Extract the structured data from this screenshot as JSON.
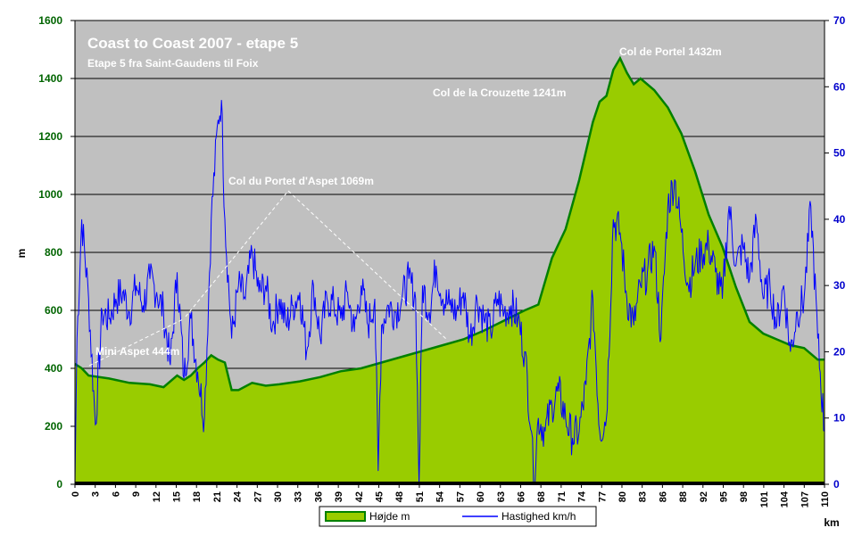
{
  "chart_data": {
    "type": "area+line",
    "title": "Coast to Coast 2007 - etape 5",
    "subtitle": "Etape 5 fra Saint-Gaudens til Foix",
    "ylabel": "m",
    "xlabel": "km",
    "ylim": [
      0,
      1600
    ],
    "y2lim": [
      0,
      70
    ],
    "xlim": [
      0,
      110
    ],
    "yticks": [
      "0",
      "200",
      "400",
      "600",
      "800",
      "1000",
      "1200",
      "1400",
      "1600"
    ],
    "y2ticks": [
      "0",
      "10",
      "20",
      "30",
      "40",
      "50",
      "60",
      "70"
    ],
    "xticks": [
      "0",
      "3",
      "6",
      "9",
      "12",
      "15",
      "18",
      "21",
      "24",
      "27",
      "30",
      "33",
      "36",
      "39",
      "42",
      "45",
      "48",
      "51",
      "54",
      "57",
      "60",
      "63",
      "66",
      "68",
      "71",
      "74",
      "77",
      "80",
      "83",
      "86",
      "88",
      "92",
      "95",
      "98",
      "101",
      "104",
      "107",
      "110"
    ],
    "grid": true,
    "legend_position": "bottom",
    "colors": {
      "plot_bg": "#c0c0c0",
      "area_fill": "#99cc00",
      "area_line": "#008000",
      "speed_line": "#0000ff",
      "left_axis": "#006400",
      "right_axis": "#0000cc"
    },
    "series": [
      {
        "name": "Højde m",
        "axis": "left",
        "x": [
          0,
          1,
          2,
          5,
          8,
          11,
          13,
          15,
          16,
          17,
          18,
          19,
          20,
          21,
          22,
          23,
          24,
          26,
          28,
          30,
          33,
          36,
          39,
          42,
          45,
          48,
          51,
          54,
          57,
          60,
          63,
          66,
          68,
          70,
          72,
          74,
          76,
          77,
          78,
          79,
          80,
          81,
          82,
          83,
          85,
          87,
          89,
          91,
          93,
          95,
          97,
          99,
          101,
          103,
          105,
          107,
          109,
          110
        ],
        "values": [
          415,
          400,
          375,
          365,
          350,
          345,
          335,
          375,
          360,
          375,
          400,
          420,
          445,
          430,
          420,
          325,
          325,
          350,
          340,
          345,
          355,
          370,
          390,
          400,
          420,
          440,
          460,
          480,
          500,
          530,
          565,
          600,
          620,
          780,
          880,
          1050,
          1250,
          1320,
          1340,
          1430,
          1470,
          1420,
          1380,
          1400,
          1360,
          1300,
          1210,
          1080,
          930,
          820,
          680,
          560,
          520,
          500,
          480,
          470,
          430,
          430
        ]
      },
      {
        "name": "Hastighed km/h",
        "axis": "right",
        "x": [
          0,
          0.3,
          1,
          2,
          3,
          4,
          5,
          6,
          7,
          8,
          9,
          10,
          11,
          12,
          13,
          14,
          15,
          16,
          17,
          18,
          19,
          20,
          21,
          21.5,
          22,
          23,
          24,
          25,
          26,
          27,
          28,
          29,
          30,
          31,
          32,
          33,
          34,
          35,
          36,
          37,
          38,
          39,
          40,
          41,
          42,
          43,
          44,
          44.5,
          45,
          46,
          47,
          48,
          49,
          50,
          50.5,
          51,
          52,
          53,
          54,
          55,
          56,
          57,
          58,
          59,
          60,
          61,
          62,
          63,
          64,
          65,
          66,
          67,
          67.3,
          68,
          69,
          70,
          71,
          72,
          73,
          74,
          75,
          76,
          77,
          78,
          79,
          80,
          81,
          82,
          83,
          84,
          85,
          86,
          87,
          88,
          89,
          90,
          91,
          92,
          93,
          94,
          95,
          96,
          97,
          98,
          99,
          100,
          101,
          102,
          103,
          104,
          105,
          106,
          107,
          108,
          109,
          110
        ],
        "values": [
          0,
          22,
          40,
          28,
          9,
          26,
          25,
          28,
          29,
          26,
          30,
          27,
          31,
          29,
          26,
          18,
          32,
          16,
          25,
          17,
          10,
          40,
          55,
          58,
          40,
          22,
          30,
          28,
          35,
          29,
          30,
          24,
          28,
          24,
          27,
          29,
          20,
          30,
          22,
          28,
          27,
          25,
          29,
          23,
          30,
          24,
          28,
          2,
          24,
          27,
          26,
          28,
          31,
          28,
          0,
          30,
          26,
          33,
          28,
          27,
          26,
          29,
          22,
          28,
          25,
          23,
          28,
          26,
          27,
          25,
          20,
          8,
          0,
          10,
          8,
          12,
          14,
          10,
          7,
          8,
          15,
          28,
          8,
          10,
          40,
          38,
          28,
          24,
          30,
          32,
          36,
          22,
          42,
          46,
          38,
          30,
          33,
          35,
          36,
          32,
          28,
          42,
          33,
          36,
          31,
          40,
          28,
          30,
          24,
          30,
          20,
          26,
          28,
          42,
          22,
          8
        ]
      }
    ],
    "annotations": [
      {
        "text": "Mini Aspet 444m",
        "x": 17,
        "y": 444
      },
      {
        "text": "Col du Portet d'Aspet 1069m",
        "x": 31,
        "y": 1020
      },
      {
        "text": "Col de la Crouzette 1241m",
        "x": 74,
        "y": 1241
      },
      {
        "text": "Col de Portel 1432m",
        "x": 79,
        "y": 1470
      }
    ]
  }
}
